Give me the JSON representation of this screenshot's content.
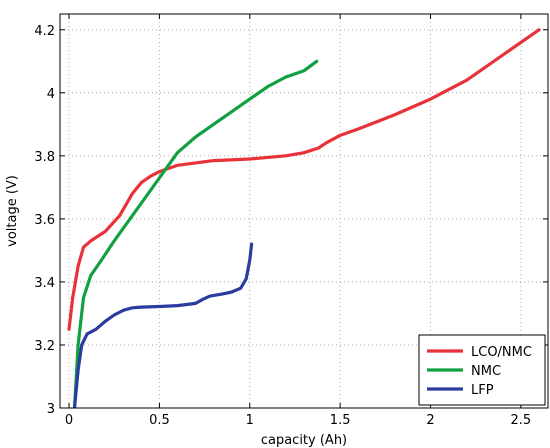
{
  "chart_data": {
    "type": "line",
    "title": "",
    "xlabel": "capacity (Ah)",
    "ylabel": "voltage (V)",
    "xlim": [
      -0.05,
      2.65
    ],
    "ylim": [
      3.0,
      4.25
    ],
    "xticks": [
      0,
      0.5,
      1,
      1.5,
      2,
      2.5
    ],
    "xtick_labels": [
      "0",
      "0.5",
      "1",
      "1.5",
      "2",
      "2.5"
    ],
    "yticks": [
      3.0,
      3.2,
      3.4,
      3.6,
      3.8,
      4.0,
      4.2
    ],
    "ytick_labels": [
      "3",
      "3.2",
      "3.4",
      "3.6",
      "3.8",
      "4",
      "4.2"
    ],
    "grid": true,
    "legend_position": "bottom-right",
    "series": [
      {
        "name": "LCO/NMC",
        "color": "#e8323a",
        "x": [
          0.0,
          0.02,
          0.05,
          0.08,
          0.12,
          0.2,
          0.28,
          0.35,
          0.4,
          0.45,
          0.5,
          0.6,
          0.8,
          1.0,
          1.2,
          1.3,
          1.38,
          1.42,
          1.5,
          1.6,
          1.8,
          2.0,
          2.2,
          2.4,
          2.6
        ],
        "y": [
          3.25,
          3.35,
          3.45,
          3.51,
          3.53,
          3.56,
          3.61,
          3.68,
          3.715,
          3.735,
          3.75,
          3.77,
          3.785,
          3.79,
          3.8,
          3.81,
          3.825,
          3.84,
          3.865,
          3.885,
          3.93,
          3.98,
          4.04,
          4.12,
          4.2
        ]
      },
      {
        "name": "NMC",
        "color": "#10a040",
        "x": [
          0.03,
          0.05,
          0.08,
          0.12,
          0.18,
          0.25,
          0.35,
          0.45,
          0.55,
          0.6,
          0.7,
          0.8,
          0.9,
          1.0,
          1.1,
          1.2,
          1.3,
          1.37
        ],
        "y": [
          3.0,
          3.2,
          3.35,
          3.42,
          3.47,
          3.53,
          3.61,
          3.69,
          3.77,
          3.81,
          3.86,
          3.9,
          3.94,
          3.98,
          4.02,
          4.05,
          4.07,
          4.1
        ]
      },
      {
        "name": "LFP",
        "color": "#2a3c9e",
        "x": [
          0.03,
          0.05,
          0.07,
          0.1,
          0.15,
          0.2,
          0.25,
          0.3,
          0.35,
          0.4,
          0.5,
          0.6,
          0.7,
          0.74,
          0.78,
          0.85,
          0.9,
          0.95,
          0.98,
          1.0,
          1.01
        ],
        "y": [
          3.0,
          3.12,
          3.2,
          3.235,
          3.25,
          3.275,
          3.295,
          3.31,
          3.318,
          3.32,
          3.322,
          3.325,
          3.332,
          3.345,
          3.355,
          3.362,
          3.368,
          3.38,
          3.41,
          3.47,
          3.52
        ]
      }
    ]
  }
}
